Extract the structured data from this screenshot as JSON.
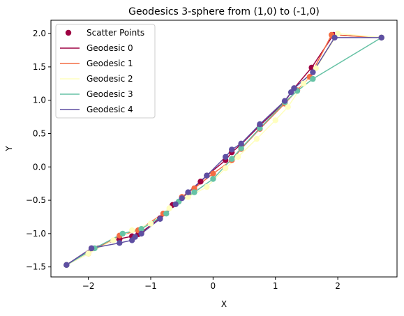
{
  "chart_data": {
    "type": "line",
    "title": "Geodesics 3-sphere from (1,0) to (-1,0)",
    "xlabel": "X",
    "ylabel": "Y",
    "xlim": [
      -2.6,
      2.95
    ],
    "ylim": [
      -1.65,
      2.2
    ],
    "xticks": [
      -2,
      -1,
      0,
      1,
      2
    ],
    "yticks": [
      -1.5,
      -1.0,
      -0.5,
      0.0,
      0.5,
      1.0,
      1.5,
      2.0
    ],
    "xtick_labels": [
      "−2",
      "−1",
      "0",
      "1",
      "2"
    ],
    "ytick_labels": [
      "−1.5",
      "−1.0",
      "−0.5",
      "0.0",
      "0.5",
      "1.0",
      "1.5",
      "2.0"
    ],
    "grid": false,
    "legend_position": "upper-left",
    "scatter_label": "Scatter Points",
    "series": [
      {
        "name": "Geodesic 0",
        "color": "#9e0142",
        "points": [
          [
            -2.35,
            -1.47
          ],
          [
            -1.95,
            -1.22
          ],
          [
            -1.5,
            -1.08
          ],
          [
            -1.3,
            -1.04
          ],
          [
            -1.2,
            -1.01
          ],
          [
            -1.15,
            -0.98
          ],
          [
            -0.85,
            -0.77
          ],
          [
            -0.65,
            -0.57
          ],
          [
            -0.4,
            -0.39
          ],
          [
            -0.2,
            -0.22
          ],
          [
            -0.1,
            -0.13
          ],
          [
            0.2,
            0.1
          ],
          [
            0.3,
            0.22
          ],
          [
            0.45,
            0.34
          ],
          [
            0.75,
            0.62
          ],
          [
            1.15,
            0.98
          ],
          [
            1.3,
            1.18
          ],
          [
            1.58,
            1.49
          ],
          [
            1.93,
            1.98
          ],
          [
            2.7,
            1.94
          ]
        ]
      },
      {
        "name": "Geodesic 1",
        "color": "#f46d43",
        "points": [
          [
            -2.35,
            -1.47
          ],
          [
            -2.0,
            -1.3
          ],
          [
            -1.5,
            -1.03
          ],
          [
            -1.2,
            -0.95
          ],
          [
            -0.8,
            -0.7
          ],
          [
            -0.5,
            -0.45
          ],
          [
            -0.3,
            -0.32
          ],
          [
            0.0,
            -0.1
          ],
          [
            0.3,
            0.1
          ],
          [
            0.45,
            0.27
          ],
          [
            0.75,
            0.57
          ],
          [
            1.15,
            0.95
          ],
          [
            1.35,
            1.15
          ],
          [
            1.55,
            1.35
          ],
          [
            1.9,
            1.98
          ],
          [
            2.7,
            1.94
          ]
        ]
      },
      {
        "name": "Geodesic 2",
        "color": "#ffffbf",
        "points": [
          [
            -2.35,
            -1.47
          ],
          [
            -2.0,
            -1.3
          ],
          [
            -1.6,
            -1.1
          ],
          [
            -1.3,
            -0.95
          ],
          [
            -1.0,
            -0.85
          ],
          [
            -0.7,
            -0.62
          ],
          [
            -0.4,
            -0.45
          ],
          [
            -0.1,
            -0.3
          ],
          [
            0.2,
            -0.02
          ],
          [
            0.4,
            0.15
          ],
          [
            0.7,
            0.42
          ],
          [
            1.0,
            0.7
          ],
          [
            1.2,
            0.9
          ],
          [
            1.45,
            1.25
          ],
          [
            1.65,
            1.48
          ],
          [
            2.0,
            2.0
          ],
          [
            2.7,
            1.94
          ]
        ]
      },
      {
        "name": "Geodesic 3",
        "color": "#66c2a5",
        "points": [
          [
            -2.35,
            -1.47
          ],
          [
            -1.9,
            -1.22
          ],
          [
            -1.45,
            -1.0
          ],
          [
            -1.15,
            -0.93
          ],
          [
            -0.75,
            -0.7
          ],
          [
            -0.55,
            -0.52
          ],
          [
            -0.3,
            -0.38
          ],
          [
            0.0,
            -0.18
          ],
          [
            0.3,
            0.12
          ],
          [
            0.45,
            0.28
          ],
          [
            0.75,
            0.58
          ],
          [
            1.15,
            0.97
          ],
          [
            1.35,
            1.14
          ],
          [
            1.6,
            1.32
          ],
          [
            2.7,
            1.94
          ]
        ]
      },
      {
        "name": "Geodesic 4",
        "color": "#5e4fa2",
        "points": [
          [
            -2.35,
            -1.47
          ],
          [
            -1.95,
            -1.22
          ],
          [
            -1.5,
            -1.14
          ],
          [
            -1.3,
            -1.1
          ],
          [
            -1.25,
            -1.05
          ],
          [
            -1.15,
            -1.0
          ],
          [
            -0.85,
            -0.78
          ],
          [
            -0.6,
            -0.56
          ],
          [
            -0.5,
            -0.47
          ],
          [
            -0.4,
            -0.38
          ],
          [
            -0.1,
            -0.13
          ],
          [
            0.2,
            0.15
          ],
          [
            0.3,
            0.26
          ],
          [
            0.45,
            0.35
          ],
          [
            0.75,
            0.64
          ],
          [
            1.15,
            0.99
          ],
          [
            1.25,
            1.12
          ],
          [
            1.3,
            1.18
          ],
          [
            1.6,
            1.42
          ],
          [
            1.95,
            1.94
          ],
          [
            2.7,
            1.94
          ]
        ]
      }
    ]
  }
}
